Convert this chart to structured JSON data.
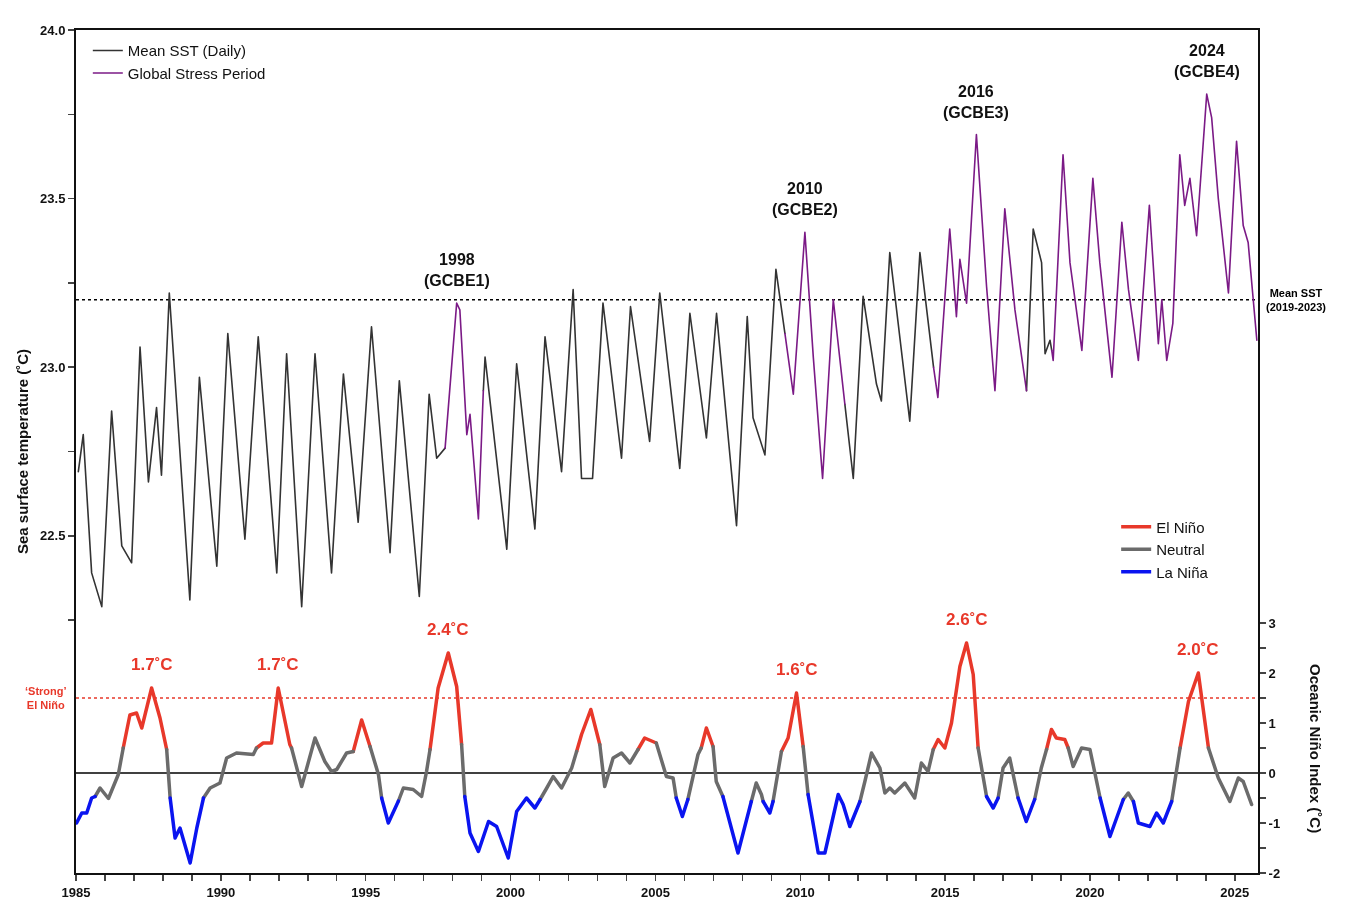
{
  "chart_data": {
    "type": "line",
    "ylabel": "Sea surface temperature (˚C)",
    "y2label": "Oceanic Niño Index (˚C)",
    "legend": "top left",
    "xlim": [
      1985,
      2025.8
    ],
    "xticks": [
      1985,
      {
        "value": 1986,
        "label": null
      },
      {
        "value": 1987,
        "label": null
      },
      {
        "value": 1988,
        "label": null
      },
      {
        "value": 1989,
        "label": null
      },
      1990,
      {
        "value": 1991,
        "label": null
      },
      {
        "value": 1992,
        "label": null
      },
      {
        "value": 1993,
        "label": null
      },
      {
        "value": 1994,
        "label": null
      },
      1995,
      {
        "value": 1996,
        "label": null
      },
      {
        "value": 1997,
        "label": null
      },
      {
        "value": 1998,
        "label": null
      },
      {
        "value": 1999,
        "label": null
      },
      2000,
      {
        "value": 2001,
        "label": null
      },
      {
        "value": 2002,
        "label": null
      },
      {
        "value": 2003,
        "label": null
      },
      {
        "value": 2004,
        "label": null
      },
      2005,
      {
        "value": 2006,
        "label": null
      },
      {
        "value": 2007,
        "label": null
      },
      {
        "value": 2008,
        "label": null
      },
      {
        "value": 2009,
        "label": null
      },
      2010,
      {
        "value": 2011,
        "label": null
      },
      {
        "value": 2012,
        "label": null
      },
      {
        "value": 2013,
        "label": null
      },
      {
        "value": 2014,
        "label": null
      },
      2015,
      {
        "value": 2016,
        "label": null
      },
      {
        "value": 2017,
        "label": null
      },
      {
        "value": 2018,
        "label": null
      },
      {
        "value": 2019,
        "label": null
      },
      2020,
      {
        "value": 2021,
        "label": null
      },
      {
        "value": 2022,
        "label": null
      },
      {
        "value": 2023,
        "label": null
      },
      {
        "value": 2024,
        "label": null
      },
      2025
    ],
    "ylim": [
      21.5,
      24
    ],
    "yticks": [
      {
        "value": 22.25,
        "label": null
      },
      {
        "value": 22.5,
        "label": "22.5"
      },
      {
        "value": 22.75,
        "label": null
      },
      {
        "value": 23,
        "label": "23.0"
      },
      {
        "value": 23.25,
        "label": null
      },
      {
        "value": 23.5,
        "label": "23.5"
      },
      {
        "value": 23.75,
        "label": null
      },
      {
        "value": 24,
        "label": "24.0"
      }
    ],
    "y2lim": [
      -2,
      14.86
    ],
    "y2ticks": [
      -2,
      {
        "value": -1.5,
        "label": null
      },
      -1,
      {
        "value": -0.5,
        "label": null
      },
      0,
      {
        "value": 0.5,
        "label": null
      },
      1,
      {
        "value": 1.5,
        "label": null
      },
      2,
      {
        "value": 2.5,
        "label": null
      },
      3
    ],
    "series": [
      {
        "name": "Mean SST (Daily)",
        "color": "#333333",
        "x": [
          1985.08,
          1985.25,
          1985.54,
          1985.89,
          1986.23,
          1986.58,
          1986.92,
          1987.21,
          1987.5,
          1987.78,
          1987.95,
          1988.22,
          1988.93,
          1989.26,
          1989.86,
          1990.24,
          1990.83,
          1991.29,
          1991.93,
          1992.27,
          1992.79,
          1993.25,
          1993.82,
          1994.23,
          1994.74,
          1995.2,
          1995.84,
          1996.16,
          1996.85,
          1997.19,
          1997.45,
          1997.74,
          null,
          1999.06,
          1999.12,
          1999.87,
          2000.21,
          2000.84,
          2001.19,
          2001.76,
          2002.16,
          2002.45,
          2002.83,
          2003.19,
          2003.83,
          2004.14,
          2004.8,
          2005.15,
          2005.84,
          2006.19,
          2006.76,
          2007.11,
          2007.8,
          2008.17,
          2008.37,
          2008.78,
          2009.16,
          2009.47,
          null,
          2011.54,
          2011.83,
          2012.17,
          2012.63,
          2012.8,
          2013.09,
          2013.78,
          2014.13,
          2014.6,
          null,
          2017.81,
          2018.04,
          2018.33,
          2018.45,
          2018.62,
          2018.68
        ],
        "values": [
          22.69,
          22.8,
          22.39,
          22.29,
          22.87,
          22.47,
          22.42,
          23.06,
          22.66,
          22.88,
          22.68,
          23.22,
          22.31,
          22.97,
          22.41,
          23.1,
          22.49,
          23.09,
          22.39,
          23.04,
          22.29,
          23.04,
          22.39,
          22.98,
          22.54,
          23.12,
          22.45,
          22.96,
          22.32,
          22.92,
          22.73,
          22.76,
          null,
          22.93,
          23.03,
          22.46,
          23.01,
          22.52,
          23.09,
          22.69,
          23.23,
          22.67,
          22.67,
          23.19,
          22.73,
          23.18,
          22.78,
          23.22,
          22.7,
          23.16,
          22.79,
          23.16,
          22.53,
          23.15,
          22.85,
          22.74,
          23.29,
          23.1,
          null,
          22.89,
          22.67,
          23.21,
          22.95,
          22.9,
          23.34,
          22.84,
          23.34,
          23.0,
          null,
          22.93,
          23.41,
          23.31,
          23.04,
          23.08,
          23.05
        ]
      },
      {
        "name": "Global Stress Period",
        "color": "#7b1a86",
        "x": [
          1997.74,
          1998.14,
          1998.25,
          1998.49,
          1998.6,
          1998.89,
          1999.06,
          null,
          2009.47,
          2009.76,
          2010.16,
          2010.45,
          2010.77,
          2011.14,
          2011.54,
          null,
          2014.6,
          2014.75,
          2015.16,
          2015.39,
          2015.51,
          2015.74,
          2016.08,
          2016.43,
          2016.72,
          2017.06,
          2017.41,
          2017.81,
          null,
          2018.68,
          2018.73,
          2019.07,
          2019.31,
          2019.72,
          2020.1,
          2020.34,
          2020.76,
          2021.1,
          2021.33,
          2021.67,
          2022.05,
          2022.36,
          2022.48,
          2022.65,
          2022.86,
          2023.1,
          2023.27,
          2023.45,
          2023.68,
          2024.03,
          2024.2,
          2024.43,
          2024.78,
          2025.06,
          2025.29,
          2025.46,
          2025.76
        ],
        "values": [
          22.76,
          23.19,
          23.17,
          22.8,
          22.86,
          22.55,
          22.93,
          null,
          23.1,
          22.92,
          23.4,
          23.03,
          22.67,
          23.2,
          22.89,
          null,
          23.0,
          22.91,
          23.41,
          23.15,
          23.32,
          23.19,
          23.69,
          23.24,
          22.93,
          23.47,
          23.17,
          22.93,
          null,
          23.05,
          23.02,
          23.63,
          23.31,
          23.05,
          23.56,
          23.31,
          22.97,
          23.43,
          23.23,
          23.02,
          23.48,
          23.07,
          23.2,
          23.02,
          23.13,
          23.63,
          23.48,
          23.56,
          23.39,
          23.81,
          23.74,
          23.5,
          23.22,
          23.67,
          23.42,
          23.37,
          23.08
        ]
      },
      {
        "name": "El Niño",
        "color": "#e8382a",
        "axis": "y2",
        "x": [
          1986.63,
          1986.86,
          1987.09,
          1987.27,
          1987.61,
          1987.9,
          1988.13,
          null,
          1991.23,
          1991.46,
          1991.75,
          1991.98,
          1992.38,
          1992.44,
          null,
          1994.57,
          1994.86,
          1995.15,
          null,
          1997.22,
          1997.5,
          1997.85,
          1998.14,
          1998.31,
          null,
          2002.28,
          2002.45,
          2002.77,
          2003.08,
          null,
          2004.4,
          2004.63,
          2005.03,
          null,
          2006.58,
          2006.76,
          2006.99,
          null,
          2009.35,
          2009.58,
          2009.87,
          2010.1,
          null,
          2014.59,
          2014.76,
          2014.99,
          2015.22,
          2015.51,
          2015.74,
          2015.97,
          2016.14,
          null,
          2018.5,
          2018.67,
          2018.84,
          2019.13,
          2019.25,
          null,
          2023.11,
          2023.4,
          2023.74,
          2024.09
        ],
        "values": [
          0.5,
          1.16,
          1.2,
          0.9,
          1.7,
          1.1,
          0.47,
          null,
          0.5,
          0.6,
          0.6,
          1.7,
          0.57,
          0.5,
          null,
          0.43,
          1.06,
          0.53,
          null,
          0.47,
          1.7,
          2.4,
          1.73,
          0.57,
          null,
          0.43,
          0.77,
          1.27,
          0.57,
          null,
          0.47,
          0.7,
          0.6,
          null,
          0.5,
          0.9,
          0.53,
          null,
          0.43,
          0.7,
          1.6,
          0.53,
          null,
          0.47,
          0.67,
          0.5,
          1.0,
          2.13,
          2.6,
          1.97,
          0.5,
          null,
          0.47,
          0.87,
          0.7,
          0.67,
          0.5,
          null,
          0.5,
          1.43,
          2.0,
          0.5
        ],
        "value_labels": [
          null,
          null,
          null,
          null,
          "1.7˚C",
          null,
          null,
          null,
          null,
          null,
          null,
          "1.7˚C",
          null,
          null,
          null,
          null,
          null,
          null,
          null,
          null,
          null,
          "2.4˚C",
          null,
          null,
          null,
          null,
          null,
          null,
          null,
          null,
          null,
          null,
          null,
          null,
          null,
          null,
          null,
          null,
          null,
          null,
          "1.6˚C",
          null,
          null,
          null,
          null,
          null,
          null,
          null,
          "2.6˚C",
          null,
          null,
          null,
          null,
          null,
          null,
          null,
          null,
          null,
          null,
          null,
          "2.0˚C",
          null
        ]
      },
      {
        "name": "Neutral",
        "color": "#6b6b6b",
        "axis": "y2",
        "x": [
          1985.66,
          1985.83,
          1986.12,
          1986.46,
          1986.63,
          null,
          1988.13,
          1988.25,
          null,
          1989.4,
          1989.63,
          1989.97,
          1990.2,
          1990.54,
          1991.12,
          1991.23,
          null,
          1992.44,
          1992.79,
          1993.25,
          1993.59,
          1993.82,
          1994.0,
          1994.34,
          1994.57,
          null,
          1995.15,
          1995.44,
          1995.55,
          null,
          1996.13,
          1996.3,
          1996.64,
          1996.93,
          1997.1,
          1997.22,
          null,
          1998.31,
          1998.42,
          null,
          2001.02,
          2001.25,
          2001.47,
          2001.76,
          2002.11,
          2002.28,
          null,
          2003.08,
          2003.25,
          2003.54,
          2003.83,
          2004.12,
          2004.4,
          null,
          2005.03,
          2005.38,
          2005.61,
          2005.72,
          null,
          2006.12,
          2006.47,
          2006.58,
          null,
          2006.99,
          2007.1,
          2007.33,
          null,
          2008.31,
          2008.48,
          2008.66,
          2008.72,
          null,
          2009.06,
          2009.35,
          null,
          2010.1,
          2010.27,
          null,
          2012.06,
          2012.23,
          2012.46,
          2012.75,
          2012.92,
          2013.09,
          2013.26,
          2013.61,
          2013.95,
          2014.18,
          2014.41,
          2014.59,
          null,
          2016.14,
          2016.43,
          null,
          2016.83,
          2017.0,
          2017.23,
          2017.52,
          null,
          2018.09,
          2018.32,
          2018.5,
          null,
          2019.25,
          2019.42,
          2019.71,
          2020.0,
          2020.35,
          null,
          2021.15,
          2021.32,
          2021.5,
          null,
          2022.82,
          2023.11,
          null,
          2024.09,
          2024.43,
          2024.83,
          2025.12,
          2025.29,
          2025.58
        ],
        "values": [
          -0.47,
          -0.3,
          -0.51,
          -0.03,
          0.5,
          null,
          0.47,
          -0.5,
          null,
          -0.5,
          -0.3,
          -0.2,
          0.3,
          0.4,
          0.37,
          0.5,
          null,
          0.5,
          -0.27,
          0.7,
          0.23,
          0.03,
          0.07,
          0.4,
          0.43,
          null,
          0.53,
          -0.03,
          -0.5,
          null,
          -0.56,
          -0.3,
          -0.33,
          -0.47,
          0.03,
          0.47,
          null,
          0.57,
          -0.47,
          null,
          -0.53,
          -0.3,
          -0.07,
          -0.3,
          0.1,
          0.43,
          null,
          0.57,
          -0.27,
          0.3,
          0.4,
          0.2,
          0.47,
          null,
          0.6,
          -0.07,
          -0.1,
          -0.5,
          null,
          -0.53,
          0.37,
          0.5,
          null,
          0.53,
          -0.17,
          -0.47,
          null,
          -0.57,
          -0.2,
          -0.43,
          -0.57,
          null,
          -0.57,
          0.43,
          null,
          0.53,
          -0.43,
          null,
          -0.57,
          -0.17,
          0.4,
          0.1,
          -0.4,
          -0.3,
          -0.4,
          -0.2,
          -0.5,
          0.2,
          0.03,
          0.47,
          null,
          0.5,
          -0.47,
          null,
          -0.5,
          0.1,
          0.3,
          -0.5,
          null,
          -0.53,
          0.1,
          0.47,
          null,
          0.5,
          0.13,
          0.5,
          0.47,
          -0.5,
          null,
          -0.53,
          -0.4,
          -0.57,
          null,
          -0.57,
          0.5,
          null,
          0.5,
          -0.1,
          -0.57,
          -0.1,
          -0.17,
          -0.63
        ]
      },
      {
        "name": "La Niña",
        "color": "#0a14f0",
        "axis": "y2",
        "x": [
          1985.02,
          1985.2,
          1985.37,
          1985.54,
          1985.66,
          null,
          1988.25,
          1988.42,
          1988.59,
          1988.94,
          1989.17,
          1989.4,
          null,
          1995.55,
          1995.78,
          1996.13,
          null,
          1998.42,
          1998.6,
          1998.89,
          1999.24,
          1999.52,
          1999.92,
          2000.21,
          2000.55,
          2000.84,
          2001.02,
          null,
          2005.72,
          2005.93,
          2006.12,
          null,
          2007.33,
          2007.85,
          2008.31,
          null,
          2008.72,
          2008.95,
          2009.06,
          null,
          2010.27,
          2010.62,
          2010.85,
          2011.31,
          2011.48,
          2011.71,
          2012.06,
          null,
          2016.43,
          2016.66,
          2016.83,
          null,
          2017.52,
          2017.8,
          2018.09,
          null,
          2020.35,
          2020.69,
          2021.15,
          null,
          2021.5,
          2021.67,
          2022.07,
          2022.3,
          2022.53,
          2022.82
        ],
        "values": [
          -1.0,
          -0.8,
          -0.8,
          -0.5,
          -0.47,
          null,
          -0.5,
          -1.3,
          -1.1,
          -1.8,
          -1.1,
          -0.5,
          null,
          -0.5,
          -1.0,
          -0.56,
          null,
          -0.47,
          -1.2,
          -1.57,
          -0.97,
          -1.07,
          -1.7,
          -0.77,
          -0.5,
          -0.7,
          -0.53,
          null,
          -0.5,
          -0.87,
          -0.53,
          null,
          -0.47,
          -1.6,
          -0.57,
          null,
          -0.57,
          -0.8,
          -0.57,
          null,
          -0.43,
          -1.6,
          -1.6,
          -0.43,
          -0.63,
          -1.07,
          -0.57,
          null,
          -0.47,
          -0.7,
          -0.5,
          null,
          -0.5,
          -0.97,
          -0.53,
          null,
          -0.5,
          -1.27,
          -0.53,
          null,
          -0.57,
          -1.0,
          -1.07,
          -0.8,
          -1.0,
          -0.57
        ]
      }
    ],
    "ref_lines": [
      {
        "axis": "y",
        "value": 23.2,
        "label": "Mean SST\n(2019-2023)",
        "color": "#000000",
        "line_style": "dotted"
      },
      {
        "axis": "y2",
        "value": 1.5,
        "label": "‘Strong’\nEl Niño",
        "color": "#e8382a",
        "line_style": "dotted"
      },
      {
        "axis": "y2",
        "value": 0,
        "color": "#000000",
        "line_style": "solid"
      }
    ],
    "annotations": [
      {
        "text": "1998\n(GCBE1)",
        "x": 1998.14,
        "y": 23.19
      },
      {
        "text": "2010\n(GCBE2)",
        "x": 2010.16,
        "y": 23.4
      },
      {
        "text": "2016\n(GCBE3)",
        "x": 2016.08,
        "y": 23.69
      },
      {
        "text": "2024\n(GCBE4)",
        "x": 2024.03,
        "y": 23.81
      }
    ]
  }
}
